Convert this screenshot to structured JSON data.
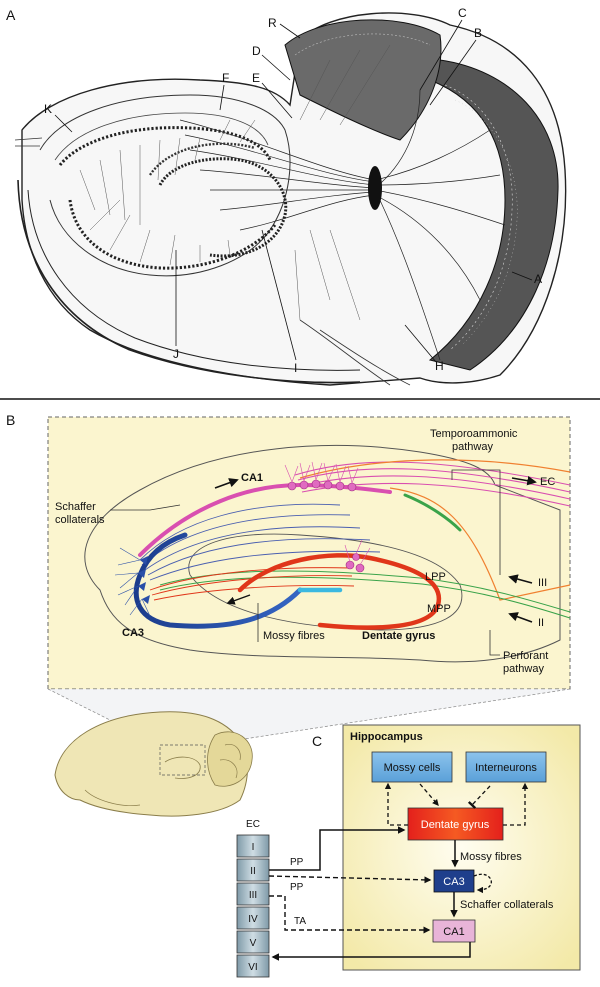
{
  "panel_a": {
    "letter": "A",
    "labels": [
      "K",
      "F",
      "R",
      "D",
      "E",
      "C",
      "B",
      "A",
      "H",
      "I",
      "J"
    ]
  },
  "panel_b": {
    "letter": "B",
    "labels": {
      "ca1": "CA1",
      "ca3": "CA3",
      "schaffer": [
        "Schaffer",
        "collaterals"
      ],
      "temporoammonic": [
        "Temporoammonic",
        "pathway"
      ],
      "ec": "EC",
      "lpp": "LPP",
      "mpp": "MPP",
      "iii": "III",
      "ii": "II",
      "mossy": "Mossy fibres",
      "dentate": "Dentate gyrus",
      "perforant": [
        "Perforant",
        "pathway"
      ]
    }
  },
  "panel_c": {
    "letter": "C",
    "title": "Hippocampus",
    "boxes": {
      "mossy_cells": "Mossy cells",
      "interneurons": "Interneurons",
      "dentate": "Dentate gyrus",
      "ca3": "CA3",
      "ca1": "CA1"
    },
    "edges": {
      "mossy_fibres": "Mossy fibres",
      "schaffer": "Schaffer collaterals",
      "pp1": "PP",
      "pp2": "PP",
      "ta": "TA"
    },
    "ec": {
      "title": "EC",
      "layers": [
        "I",
        "II",
        "III",
        "IV",
        "V",
        "VI"
      ]
    }
  },
  "colors": {
    "ca1_pink": "#d94fb0",
    "ca3_blue": "#2a4fa8",
    "dentate_red": "#e0361a",
    "green": "#3aa34a",
    "orange": "#f08030",
    "panel_bg": "#fbf5cf",
    "box_blue": "#6fb0e0",
    "ca1_box": "#e8b4d8"
  }
}
